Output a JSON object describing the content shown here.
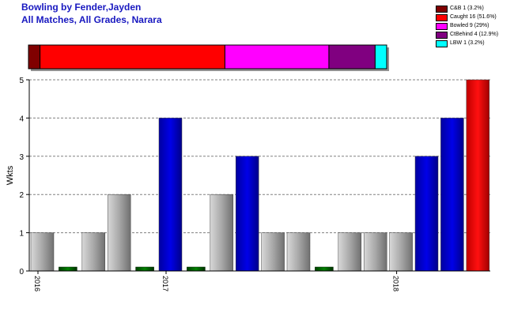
{
  "header": {
    "title_line1": "Bowling by Fender,Jayden",
    "title_line2": "All Matches, All Grades, Narara"
  },
  "legend": [
    {
      "label": "C&B 1 (3.2%)",
      "color": "#800000"
    },
    {
      "label": "Caught 16 (51.6%)",
      "color": "#ff0000"
    },
    {
      "label": "Bowled 9 (29%)",
      "color": "#ff00ff"
    },
    {
      "label": "CtBehind 4 (12.9%)",
      "color": "#800080"
    },
    {
      "label": "LBW 1 (3.2%)",
      "color": "#00ffff"
    }
  ],
  "chart_data": [
    {
      "type": "bar",
      "subtype": "stacked-100-percent",
      "categories": [
        "C&B",
        "Caught",
        "Bowled",
        "CtBehind",
        "LBW"
      ],
      "values": [
        1,
        16,
        9,
        4,
        1
      ],
      "percent": [
        3.2,
        51.6,
        29,
        12.9,
        3.2
      ],
      "colors": [
        "#800000",
        "#ff0000",
        "#ff00ff",
        "#800080",
        "#00ffff"
      ]
    },
    {
      "type": "bar",
      "ylabel": "Wkts",
      "ylim": [
        0,
        5
      ],
      "yticks": [
        0,
        1,
        2,
        3,
        4,
        5
      ],
      "grid": true,
      "x_tick_labels": [
        {
          "label": "2016",
          "at_bar": 0
        },
        {
          "label": "2017",
          "at_bar": 5
        },
        {
          "label": "2018",
          "at_bar": 14
        }
      ],
      "values": [
        1,
        0,
        1,
        2,
        0,
        4,
        0,
        2,
        3,
        1,
        1,
        0,
        1,
        1,
        1,
        3,
        4,
        5
      ],
      "bar_kind": [
        "gray",
        "green",
        "gray",
        "gray",
        "green",
        "blue",
        "green",
        "gray",
        "blue",
        "gray",
        "gray",
        "green",
        "gray",
        "gray",
        "gray",
        "blue",
        "blue",
        "red"
      ],
      "colors": {
        "gray": "#a0a0a0",
        "blue": "#0000d0",
        "green": "#006000",
        "red": "#ff0000"
      }
    }
  ]
}
